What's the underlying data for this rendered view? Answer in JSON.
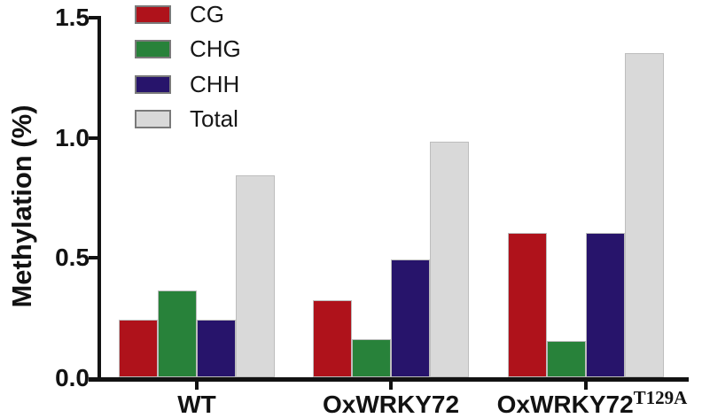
{
  "chart_data": {
    "type": "bar",
    "title": "",
    "xlabel": "",
    "ylabel": "Methylation (%)",
    "ylim": [
      0,
      1.5
    ],
    "yticks": [
      0.0,
      0.5,
      1.0,
      1.5
    ],
    "ytick_labels": [
      "0.0",
      "0.5",
      "1.0",
      "1.5"
    ],
    "grid": false,
    "legend_position": "top-left-inside",
    "background_color": "#ffffff",
    "axis_color": "#121212",
    "categories": [
      {
        "label": "WT",
        "superscript": ""
      },
      {
        "label": "OxWRKY72",
        "superscript": ""
      },
      {
        "label": "OxWRKY72",
        "superscript": "T129A"
      }
    ],
    "series": [
      {
        "name": "CG",
        "color": "#AF121B",
        "values": [
          0.24,
          0.32,
          0.6
        ]
      },
      {
        "name": "CHG",
        "color": "#28823A",
        "values": [
          0.36,
          0.16,
          0.15
        ]
      },
      {
        "name": "CHH",
        "color": "#27146B",
        "values": [
          0.24,
          0.49,
          0.6
        ]
      },
      {
        "name": "Total",
        "color": "#D9D9D9",
        "values": [
          0.84,
          0.98,
          1.35
        ]
      }
    ]
  }
}
